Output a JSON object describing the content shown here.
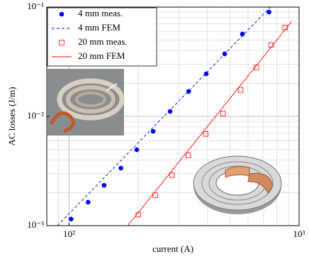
{
  "chart_data": {
    "type": "scatter",
    "xlabel": "current (A)",
    "ylabel": "AC losses (J/m)",
    "xscale": "log",
    "yscale": "log",
    "grid": true,
    "xlim": [
      80,
      1000
    ],
    "ylim": [
      0.001,
      0.1
    ],
    "xticks": [
      {
        "value": 100,
        "label": "10²"
      },
      {
        "value": 1000,
        "label": "10³"
      }
    ],
    "yticks": [
      {
        "value": 0.001,
        "label": "10⁻³"
      },
      {
        "value": 0.01,
        "label": "10⁻²"
      },
      {
        "value": 0.1,
        "label": "10⁻¹"
      }
    ],
    "legend": "upper left",
    "series": [
      {
        "name": "4 mm meas.",
        "color": "#0000ff",
        "style": "marker",
        "marker": "circle",
        "x": [
          102,
          121,
          142,
          168,
          197,
          232,
          275,
          331,
          395,
          475,
          567,
          740
        ],
        "values": [
          0.00115,
          0.00164,
          0.00234,
          0.00336,
          0.00495,
          0.0073,
          0.0111,
          0.0169,
          0.0245,
          0.0373,
          0.0567,
          0.09
        ]
      },
      {
        "name": "4 mm FEM",
        "color": "#0000ff",
        "style": "line",
        "dash": true,
        "x": [
          89,
          750
        ],
        "values": [
          0.001,
          0.1
        ]
      },
      {
        "name": "20 mm meas.",
        "color": "#ff0000",
        "style": "marker",
        "marker": "square",
        "x": [
          200,
          237,
          280,
          330,
          393,
          467,
          557,
          652,
          755,
          870
        ],
        "values": [
          0.00126,
          0.0019,
          0.0029,
          0.0044,
          0.0069,
          0.0106,
          0.0174,
          0.028,
          0.045,
          0.065
        ]
      },
      {
        "name": "20 mm FEM",
        "color": "#ff0000",
        "style": "line",
        "dash": false,
        "x": [
          180,
          930
        ],
        "values": [
          0.001,
          0.074
        ]
      }
    ]
  }
}
